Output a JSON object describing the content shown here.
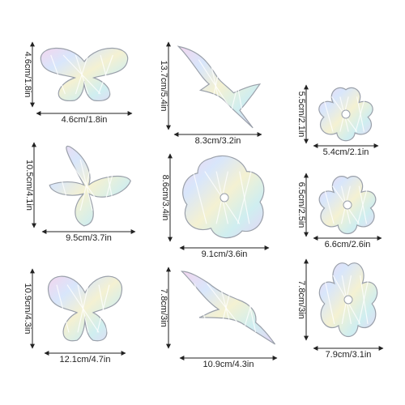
{
  "stickers": [
    {
      "height": "4.6cm/1.8in",
      "width": "4.6cm/1.8in"
    },
    {
      "height": "13.7cm/5.4in",
      "width": "8.3cm/3.2in"
    },
    {
      "height": "5.5cm/2.1in",
      "width": "5.4cm/2.1in"
    },
    {
      "height": "10.5cm/4.1in",
      "width": "9.5cm/3.7in"
    },
    {
      "height": "8.6cm/3.4in",
      "width": "9.1cm/3.6in"
    },
    {
      "height": "6.5cm/2.5in",
      "width": "6.6cm/2.6in"
    },
    {
      "height": "10.9cm/4.3in",
      "width": "12.1cm/4.7in"
    },
    {
      "height": "7.8cm/3in",
      "width": "10.9cm/4.3in"
    },
    {
      "height": "7.8cm/3in",
      "width": "7.9cm/3.1in"
    }
  ]
}
